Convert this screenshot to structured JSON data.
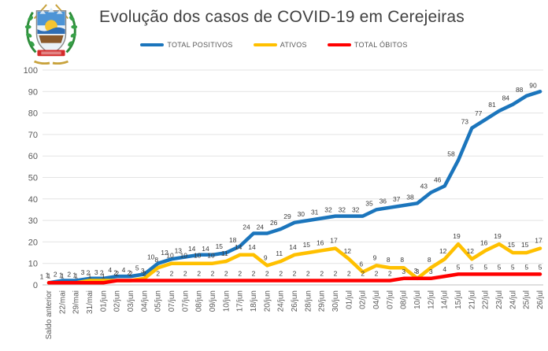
{
  "header": {
    "title": "Evolução dos casos de COVID-19 em Cerejeiras"
  },
  "logo": {
    "name": "cerejeiras-coat-of-arms"
  },
  "chart_data": {
    "type": "line",
    "title": "Evolução dos casos de COVID-19 em Cerejeiras",
    "xlabel": "",
    "ylabel": "",
    "ylim": [
      0,
      100
    ],
    "yticks": [
      0,
      10,
      20,
      30,
      40,
      50,
      60,
      70,
      80,
      90,
      100
    ],
    "grid": true,
    "legend_position": "top",
    "categories": [
      "Saldo anterior",
      "22/mai",
      "29/mai",
      "31/mai",
      "01/jun",
      "02/jun",
      "03/jun",
      "04/jun",
      "05/jun",
      "07/jun",
      "07/jun",
      "08/jun",
      "09/jun",
      "10/jun",
      "17/jun",
      "18/jun",
      "20/jun",
      "24/jun",
      "26/jun",
      "28/jun",
      "29/jun",
      "30/jun",
      "01/jul",
      "02/jul",
      "04/jul",
      "07/jul",
      "08/jul",
      "10/jul",
      "12/jul",
      "14/jul",
      "15/jul",
      "21/jul",
      "22/jul",
      "23/jul",
      "24/jul",
      "25/jul",
      "26/jul"
    ],
    "series": [
      {
        "name": "TOTAL POSITIVOS",
        "color": "#1B75BC",
        "values": [
          1,
          2,
          2,
          3,
          3,
          4,
          4,
          5,
          10,
          12,
          13,
          14,
          14,
          15,
          18,
          24,
          24,
          26,
          29,
          30,
          31,
          32,
          32,
          32,
          35,
          36,
          37,
          38,
          43,
          46,
          58,
          73,
          77,
          81,
          84,
          88,
          90
        ]
      },
      {
        "name": "ATIVOS",
        "color": "#FFC000",
        "values": [
          1,
          1,
          1,
          2,
          2,
          2,
          2,
          3,
          8,
          10,
          10,
          10,
          10,
          11,
          14,
          14,
          9,
          11,
          14,
          15,
          16,
          17,
          12,
          6,
          9,
          8,
          8,
          3,
          8,
          12,
          19,
          12,
          16,
          19,
          15,
          15,
          17
        ]
      },
      {
        "name": "TOTAL ÓBITOS",
        "color": "#FF0000",
        "values": [
          1,
          1,
          1,
          1,
          1,
          2,
          2,
          2,
          2,
          2,
          2,
          2,
          2,
          2,
          2,
          2,
          2,
          2,
          2,
          2,
          2,
          2,
          2,
          2,
          2,
          2,
          3,
          3,
          3,
          4,
          5,
          5,
          5,
          5,
          5,
          5,
          5
        ]
      }
    ],
    "colors": {
      "grid": "#E3E3E3",
      "axis": "#BFBFBF",
      "text": "#595959",
      "title": "#404040"
    }
  }
}
